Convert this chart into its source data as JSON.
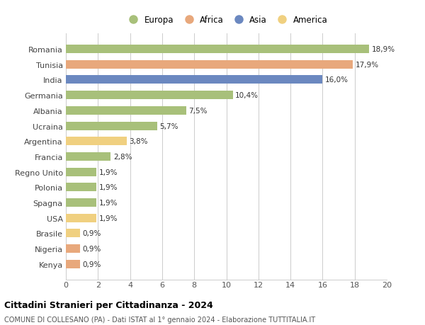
{
  "categories": [
    "Romania",
    "Tunisia",
    "India",
    "Germania",
    "Albania",
    "Ucraina",
    "Argentina",
    "Francia",
    "Regno Unito",
    "Polonia",
    "Spagna",
    "USA",
    "Brasile",
    "Nigeria",
    "Kenya"
  ],
  "values": [
    18.9,
    17.9,
    16.0,
    10.4,
    7.5,
    5.7,
    3.8,
    2.8,
    1.9,
    1.9,
    1.9,
    1.9,
    0.9,
    0.9,
    0.9
  ],
  "labels": [
    "18,9%",
    "17,9%",
    "16,0%",
    "10,4%",
    "7,5%",
    "5,7%",
    "3,8%",
    "2,8%",
    "1,9%",
    "1,9%",
    "1,9%",
    "1,9%",
    "0,9%",
    "0,9%",
    "0,9%"
  ],
  "colors": [
    "#a8c07a",
    "#e8a87c",
    "#6b88c0",
    "#a8c07a",
    "#a8c07a",
    "#a8c07a",
    "#f0d080",
    "#a8c07a",
    "#a8c07a",
    "#a8c07a",
    "#a8c07a",
    "#f0d080",
    "#f0d080",
    "#e8a87c",
    "#e8a87c"
  ],
  "continent_colors": {
    "Europa": "#a8c07a",
    "Africa": "#e8a87c",
    "Asia": "#6b88c0",
    "America": "#f0d080"
  },
  "xlim": [
    0,
    20
  ],
  "xticks": [
    0,
    2,
    4,
    6,
    8,
    10,
    12,
    14,
    16,
    18,
    20
  ],
  "title": "Cittadini Stranieri per Cittadinanza - 2024",
  "subtitle": "COMUNE DI COLLESANO (PA) - Dati ISTAT al 1° gennaio 2024 - Elaborazione TUTTITALIA.IT",
  "background_color": "#ffffff",
  "grid_color": "#cccccc",
  "bar_height": 0.55,
  "label_fontsize": 7.5,
  "ytick_fontsize": 8,
  "xtick_fontsize": 8,
  "legend_fontsize": 8.5,
  "title_fontsize": 9,
  "subtitle_fontsize": 7
}
